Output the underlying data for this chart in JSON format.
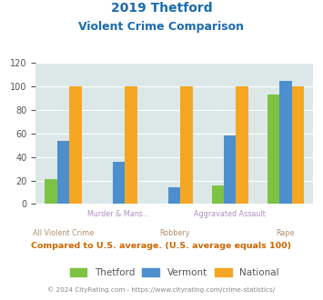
{
  "title_line1": "2019 Thetford",
  "title_line2": "Violent Crime Comparison",
  "categories": [
    "All Violent Crime",
    "Murder & Mans...",
    "Robbery",
    "Aggravated Assault",
    "Rape"
  ],
  "cat_labels_row1": [
    "",
    "Murder & Mans...",
    "",
    "Aggravated Assault",
    ""
  ],
  "cat_labels_row2": [
    "All Violent Crime",
    "",
    "Robbery",
    "",
    "Rape"
  ],
  "thetford": [
    21,
    0,
    0,
    16,
    93
  ],
  "vermont": [
    54,
    36,
    14,
    58,
    105
  ],
  "national": [
    100,
    100,
    100,
    100,
    100
  ],
  "color_thetford": "#7dc243",
  "color_vermont": "#4d8fcc",
  "color_national": "#f5a623",
  "color_title": "#1a6bb0",
  "color_bg": "#dce8e8",
  "color_footer": "#888888",
  "color_compare_text": "#cc6600",
  "color_xlabel_row1": "#b090c0",
  "color_xlabel_row2": "#b09070",
  "ylim": [
    0,
    120
  ],
  "yticks": [
    0,
    20,
    40,
    60,
    80,
    100,
    120
  ],
  "bar_width": 0.22,
  "legend_labels": [
    "Thetford",
    "Vermont",
    "National"
  ],
  "footer_text": "© 2024 CityRating.com - https://www.cityrating.com/crime-statistics/",
  "compare_text": "Compared to U.S. average. (U.S. average equals 100)"
}
